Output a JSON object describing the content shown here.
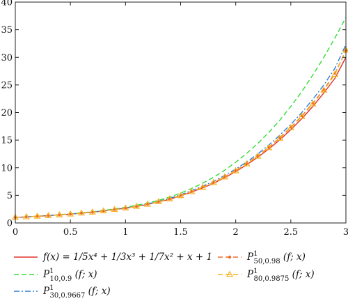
{
  "chart_data": {
    "type": "line",
    "title": "",
    "xlabel": "",
    "ylabel": "",
    "xlim": [
      0,
      3
    ],
    "ylim": [
      0,
      40
    ],
    "x_ticks": [
      "0",
      "0.5",
      "1",
      "1.5",
      "2",
      "2.5",
      "3"
    ],
    "y_ticks": [
      "0",
      "5",
      "10",
      "15",
      "20",
      "25",
      "30",
      "35",
      "40"
    ],
    "grid": false,
    "legend_position": "bottom",
    "x": [
      0.0,
      0.1,
      0.2,
      0.3,
      0.4,
      0.5,
      0.6,
      0.7,
      0.8,
      0.9,
      1.0,
      1.1,
      1.2,
      1.3,
      1.4,
      1.5,
      1.6,
      1.7,
      1.8,
      1.9,
      2.0,
      2.1,
      2.2,
      2.3,
      2.4,
      2.5,
      2.6,
      2.7,
      2.8,
      2.9,
      3.0
    ],
    "series": [
      {
        "name": "f(x) = 1/5x⁴ + 1/3x³ + 1/7x² + x + 1",
        "label_parts": {
          "main": "f(x) = 1/5x⁴ + 1/3x³ + 1/7x² + x + 1"
        },
        "color": "#e0302a",
        "style": "solid",
        "marker": "none",
        "values": [
          1.0,
          1.1,
          1.21,
          1.33,
          1.46,
          1.6,
          1.77,
          1.95,
          2.17,
          2.42,
          2.68,
          2.97,
          3.36,
          3.8,
          4.3,
          4.9,
          5.6,
          6.35,
          7.2,
          8.2,
          9.3,
          10.55,
          11.9,
          13.4,
          15.05,
          16.9,
          18.9,
          21.1,
          23.55,
          26.2,
          30.0
        ]
      },
      {
        "name": "P¹10,0.9 (f; x)",
        "label_parts": {
          "p": "P",
          "sup": "1",
          "sub": "10,0.9",
          "tail": " (f; x)"
        },
        "color": "#33dd33",
        "style": "dashed",
        "marker": "none",
        "values": [
          1.0,
          1.11,
          1.23,
          1.36,
          1.5,
          1.66,
          1.84,
          2.04,
          2.28,
          2.55,
          2.85,
          3.2,
          3.6,
          4.1,
          4.7,
          5.4,
          6.25,
          7.2,
          8.3,
          9.55,
          11.0,
          12.6,
          14.4,
          16.4,
          18.6,
          21.1,
          23.8,
          26.8,
          30.0,
          33.5,
          37.2
        ]
      },
      {
        "name": "P¹30,0.9667 (f; x)",
        "label_parts": {
          "p": "P",
          "sup": "1",
          "sub": "30,0.9667",
          "tail": " (f; x)"
        },
        "color": "#2f7fd6",
        "style": "dashdot",
        "marker": "none",
        "values": [
          1.0,
          1.1,
          1.21,
          1.34,
          1.47,
          1.62,
          1.79,
          1.98,
          2.2,
          2.45,
          2.73,
          3.05,
          3.45,
          3.92,
          4.45,
          5.1,
          5.85,
          6.65,
          7.55,
          8.6,
          9.75,
          11.05,
          12.5,
          14.1,
          15.9,
          17.85,
          20.0,
          22.4,
          25.0,
          28.0,
          32.3
        ]
      },
      {
        "name": "P¹50,0.98 (f; x)",
        "label_parts": {
          "p": "P",
          "sup": "1",
          "sub": "50,0.98",
          "tail": " (f; x)"
        },
        "color": "#f06a2a",
        "style": "dashed",
        "marker": "dot",
        "values": [
          1.0,
          1.1,
          1.21,
          1.33,
          1.46,
          1.61,
          1.78,
          1.96,
          2.18,
          2.43,
          2.7,
          3.0,
          3.4,
          3.85,
          4.36,
          4.97,
          5.7,
          6.48,
          7.35,
          8.38,
          9.5,
          10.78,
          12.18,
          13.72,
          15.45,
          17.35,
          19.4,
          21.7,
          24.2,
          27.1,
          31.2
        ]
      },
      {
        "name": "P¹80,0.9875 (f; x)",
        "label_parts": {
          "p": "P",
          "sup": "1",
          "sub": "80,0.9875",
          "tail": " (f; x)"
        },
        "color": "#f5b021",
        "style": "dashed",
        "marker": "triangle",
        "values": [
          1.0,
          1.1,
          1.21,
          1.33,
          1.46,
          1.61,
          1.78,
          1.96,
          2.18,
          2.43,
          2.7,
          3.0,
          3.38,
          3.83,
          4.34,
          4.94,
          5.66,
          6.43,
          7.3,
          8.32,
          9.44,
          10.7,
          12.08,
          13.62,
          15.33,
          17.22,
          19.27,
          21.55,
          24.05,
          26.9,
          31.3
        ]
      }
    ]
  }
}
